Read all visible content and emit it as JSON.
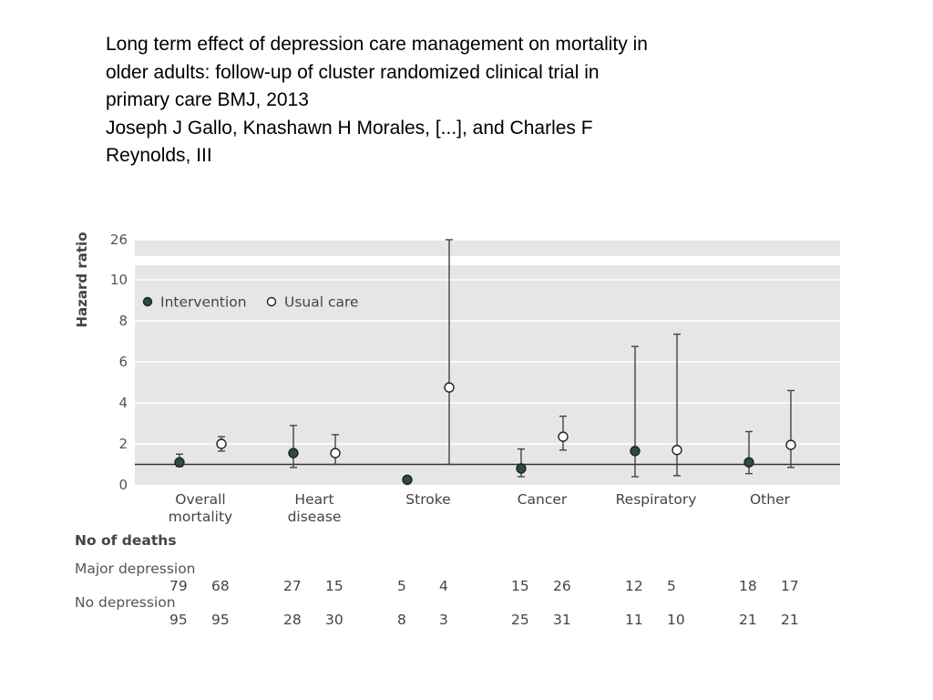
{
  "heading": {
    "line1": "Long term effect of depression care management on mortality in",
    "line2": "older adults: follow-up of cluster randomized clinical trial in",
    "line3": "primary care BMJ, 2013",
    "line4": "Joseph J Gallo, Knashawn H Morales, [...], and Charles F",
    "line5": "Reynolds, III"
  },
  "chart_data": {
    "type": "scatter",
    "ylabel": "Hazard ratio",
    "y_ticks": [
      "0",
      "2",
      "4",
      "6",
      "8",
      "10",
      "26"
    ],
    "y_axis_break": {
      "between": [
        10,
        26
      ]
    },
    "reference_line": 1,
    "grid": true,
    "legend_placement": "top-left",
    "categories": [
      [
        "Overall",
        "mortality"
      ],
      [
        "Heart",
        "disease"
      ],
      [
        "Stroke"
      ],
      [
        "Cancer"
      ],
      [
        "Respiratory"
      ],
      [
        "Other"
      ]
    ],
    "series": [
      {
        "name": "Intervention",
        "style": "filled",
        "color": "#2e4a4a",
        "estimates": [
          1.1,
          1.55,
          0.25,
          0.8,
          1.65,
          1.1
        ],
        "ci_low": [
          0.9,
          0.85,
          0.1,
          0.4,
          0.4,
          0.55
        ],
        "ci_high": [
          1.5,
          2.9,
          0.4,
          1.75,
          6.75,
          2.6
        ]
      },
      {
        "name": "Usual care",
        "style": "open",
        "color": "#ffffff",
        "estimates": [
          2.0,
          1.55,
          4.75,
          2.35,
          1.7,
          1.95
        ],
        "ci_low": [
          1.65,
          1.0,
          1.0,
          1.7,
          0.45,
          0.85
        ],
        "ci_high": [
          2.35,
          2.45,
          26,
          3.35,
          7.35,
          4.6
        ]
      }
    ],
    "deaths_table": {
      "title": "No of deaths",
      "rows": [
        {
          "label": "Major depression",
          "values": [
            "79",
            "68",
            "27",
            "15",
            "5",
            "4",
            "15",
            "26",
            "12",
            "5",
            "18",
            "17"
          ]
        },
        {
          "label": "No depression",
          "values": [
            "95",
            "95",
            "28",
            "30",
            "8",
            "3",
            "25",
            "31",
            "11",
            "10",
            "21",
            "21"
          ]
        }
      ]
    }
  }
}
